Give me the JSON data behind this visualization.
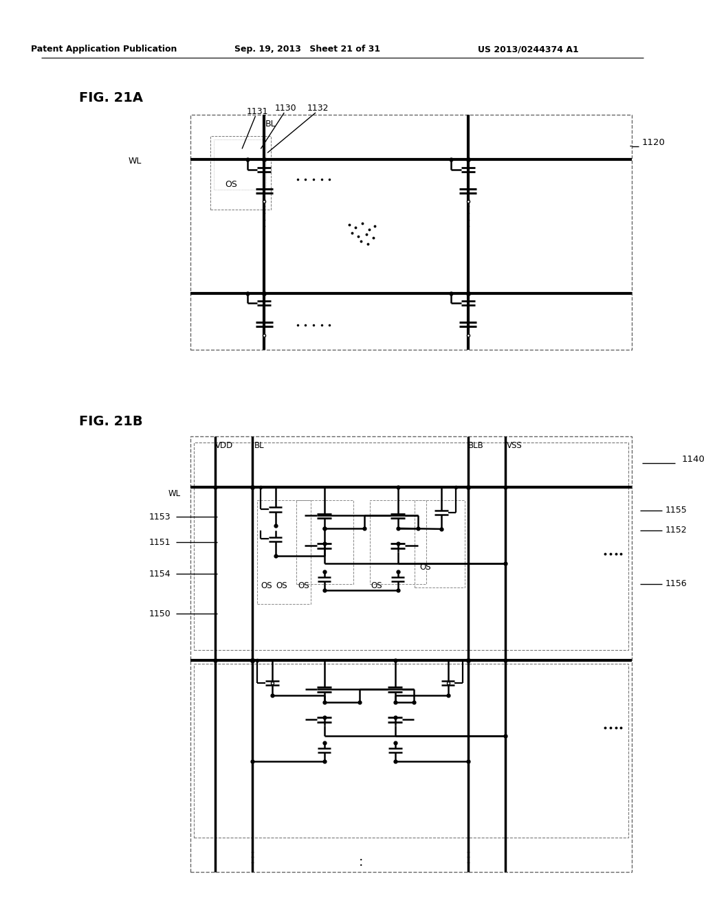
{
  "header_left": "Patent Application Publication",
  "header_mid": "Sep. 19, 2013 Sheet 21 of 31",
  "header_right": "US 2013/0244374 A1",
  "fig21a": "FIG. 21A",
  "fig21b": "FIG. 21B",
  "bg": "#ffffff"
}
